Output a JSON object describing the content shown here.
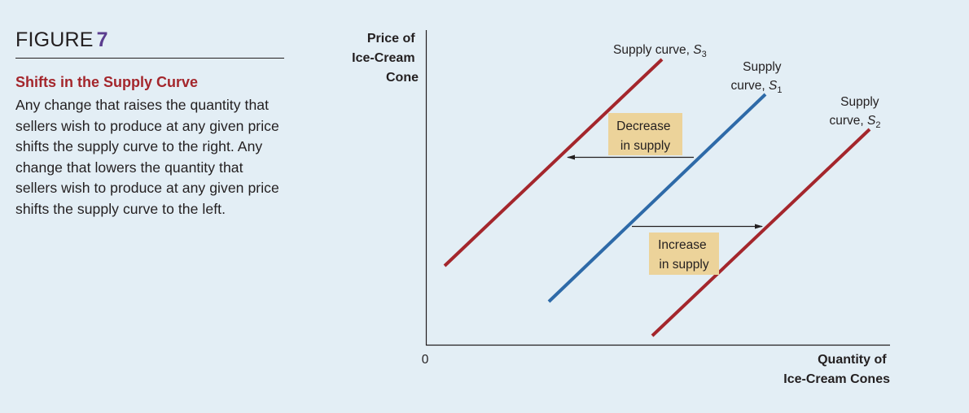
{
  "figure": {
    "label": "FIGURE",
    "number": "7",
    "title": "Shifts in the Supply Curve",
    "caption": "Any change that raises the quantity that sellers wish to produce at any given price shifts the supply curve to the right. Any change that lowers the quantity that sellers wish to produce at any given price shifts the supply curve to the left."
  },
  "diagram": {
    "y_axis_title": [
      "Price of",
      "Ice-Cream",
      "Cone"
    ],
    "x_axis_title": [
      "Quantity of",
      "Ice-Cream Cones"
    ],
    "origin_label": "0",
    "curves": {
      "s3": {
        "label_line1": "Supply curve, ",
        "symbol": "S",
        "subscript": "3",
        "color": "#a4262c"
      },
      "s1": {
        "label_line1": "Supply",
        "label_line2": "curve, ",
        "symbol": "S",
        "subscript": "1",
        "color": "#2e6aa8"
      },
      "s2": {
        "label_line1": "Supply",
        "label_line2": "curve, ",
        "symbol": "S",
        "subscript": "2",
        "color": "#a4262c"
      }
    },
    "decrease_box": {
      "line1": "Decrease",
      "line2": "in supply",
      "fill": "#ecd39a"
    },
    "increase_box": {
      "line1": "Increase",
      "line2": "in supply",
      "fill": "#ecd39a"
    }
  }
}
